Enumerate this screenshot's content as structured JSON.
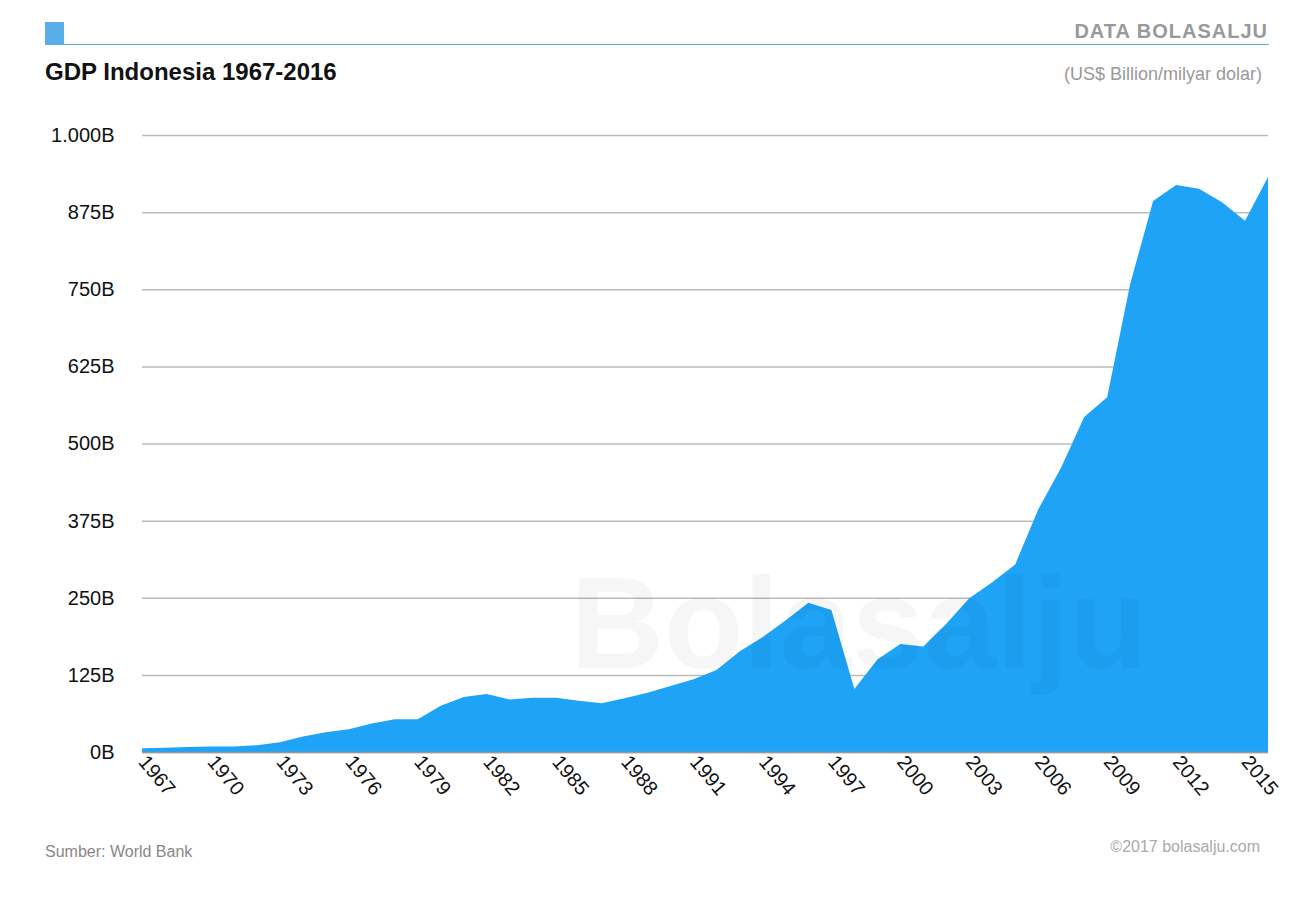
{
  "chart_data": {
    "type": "area",
    "title": "GDP Indonesia 1967-2016",
    "subtitle": "(US$ Billion/milyar dolar)",
    "brand": "DATA BOLASALJU",
    "watermark": "Bolasalju",
    "source": "Sumber: World Bank",
    "credit": "©2017 bolasalju.com",
    "color": "#1ea3f7",
    "grid": true,
    "x": [
      1967,
      1968,
      1969,
      1970,
      1971,
      1972,
      1973,
      1974,
      1975,
      1976,
      1977,
      1978,
      1979,
      1980,
      1981,
      1982,
      1983,
      1984,
      1985,
      1986,
      1987,
      1988,
      1989,
      1990,
      1991,
      1992,
      1993,
      1994,
      1995,
      1996,
      1997,
      1998,
      1999,
      2000,
      2001,
      2002,
      2003,
      2004,
      2005,
      2006,
      2007,
      2008,
      2009,
      2010,
      2011,
      2012,
      2013,
      2014,
      2015,
      2016
    ],
    "values": [
      6,
      7,
      8,
      9,
      9,
      11,
      16,
      25,
      32,
      37,
      46,
      53,
      53,
      75,
      89,
      94,
      85,
      88,
      88,
      83,
      79,
      87,
      96,
      107,
      118,
      133,
      163,
      186,
      213,
      242,
      230,
      102,
      150,
      175,
      171,
      208,
      249,
      275,
      304,
      393,
      461,
      543,
      575,
      758,
      893,
      919,
      913,
      891,
      861,
      932
    ],
    "xlim": [
      1967,
      2016
    ],
    "xticks": [
      1967,
      1970,
      1973,
      1976,
      1979,
      1982,
      1985,
      1988,
      1991,
      1994,
      1997,
      2000,
      2003,
      2006,
      2009,
      2012,
      2015
    ],
    "ylim": [
      0,
      1000
    ],
    "yticks": [
      {
        "value": 0,
        "label": "0B"
      },
      {
        "value": 125,
        "label": "125B"
      },
      {
        "value": 250,
        "label": "250B"
      },
      {
        "value": 375,
        "label": "375B"
      },
      {
        "value": 500,
        "label": "500B"
      },
      {
        "value": 625,
        "label": "625B"
      },
      {
        "value": 750,
        "label": "750B"
      },
      {
        "value": 875,
        "label": "875B"
      },
      {
        "value": 1000,
        "label": "1.000B"
      }
    ]
  }
}
